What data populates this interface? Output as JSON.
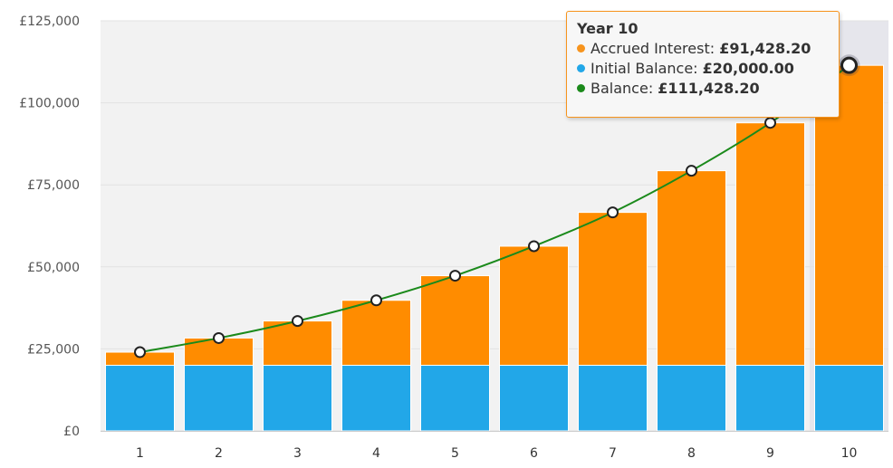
{
  "chart_data": {
    "type": "bar",
    "stacked": true,
    "categories": [
      "1",
      "2",
      "3",
      "4",
      "5",
      "6",
      "7",
      "8",
      "9",
      "10"
    ],
    "series": [
      {
        "name": "Initial Balance",
        "color": "#22a7e8",
        "values": [
          20000,
          20000,
          20000,
          20000,
          20000,
          20000,
          20000,
          20000,
          20000,
          20000
        ]
      },
      {
        "name": "Accrued Interest",
        "color": "#ff8c00",
        "values": [
          4000,
          8300,
          13500,
          19800,
          27300,
          36300,
          46600,
          59300,
          73900,
          91428.2
        ]
      },
      {
        "name": "Balance",
        "type": "line",
        "color": "#1b8a1b",
        "values": [
          24000,
          28300,
          33500,
          39800,
          47300,
          56300,
          66600,
          79300,
          93900,
          111428.2
        ]
      }
    ],
    "ylim": [
      0,
      125000
    ],
    "yticks": [
      "£0",
      "£25,000",
      "£50,000",
      "£75,000",
      "£100,000",
      "£125,000"
    ],
    "ytick_values": [
      0,
      25000,
      50000,
      75000,
      100000,
      125000
    ],
    "grid": true,
    "highlight_index": 9
  },
  "tooltip": {
    "title": "Year 10",
    "rows": [
      {
        "label": "Accrued Interest: ",
        "value": "£91,428.20",
        "color": "#f7941d"
      },
      {
        "label": "Initial Balance: ",
        "value": "£20,000.00",
        "color": "#22a7e8"
      },
      {
        "label": "Balance: ",
        "value": "£111,428.20",
        "color": "#1b8a1b"
      }
    ]
  }
}
